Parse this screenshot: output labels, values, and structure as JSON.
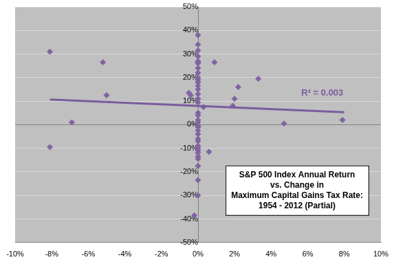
{
  "chart_data": {
    "type": "scatter",
    "title": [
      "S&P 500 Index Annual Return",
      "vs. Change in",
      "Maximum Capital Gains Tax Rate:",
      "1954 - 2012 (Partial)"
    ],
    "annotations": [
      "R² = 0.003"
    ],
    "x": [
      -8.1,
      -8.1,
      -6.9,
      -5.2,
      -5.0,
      -0.5,
      -0.4,
      0.3,
      0.9,
      0.6,
      1.9,
      2.0,
      2.2,
      3.3,
      4.7,
      7.9,
      -0.2,
      0,
      0,
      0,
      0,
      0,
      0,
      0,
      0,
      0,
      0,
      0,
      0,
      0,
      0,
      0,
      0,
      0,
      0,
      0,
      0,
      0,
      0,
      0,
      0,
      0,
      0,
      0,
      0,
      0,
      0,
      0,
      0,
      0,
      0,
      0,
      0
    ],
    "values": [
      31,
      -9.5,
      1,
      26.5,
      12.5,
      13.5,
      12.5,
      7.5,
      26.5,
      -11.5,
      8,
      11,
      16,
      19.5,
      0.5,
      2,
      -38.5,
      38,
      34,
      31.5,
      29,
      27,
      26.5,
      26,
      24,
      22,
      20,
      19,
      18,
      16.5,
      15,
      13,
      11,
      9.5,
      5,
      4,
      2,
      1,
      -0.5,
      -1,
      -2.5,
      -4,
      -6,
      -7,
      -9,
      -10,
      -11,
      -12,
      -13.5,
      -14.5,
      -17.5,
      -23.5,
      -30
    ],
    "color": "#8064a2",
    "marker": "diamond",
    "trendline": {
      "x": [
        -8.1,
        8
      ],
      "values": [
        10.7,
        5.3
      ],
      "color": "#7a5c9e"
    },
    "xlim": [
      -10,
      10
    ],
    "xticks": [
      {
        "value": -10,
        "label": "-10%"
      },
      {
        "value": -8,
        "label": "-8%"
      },
      {
        "value": -6,
        "label": "-6%"
      },
      {
        "value": -4,
        "label": "-4%"
      },
      {
        "value": -2,
        "label": "-2%"
      },
      {
        "value": 0,
        "label": "0%"
      },
      {
        "value": 2,
        "label": "2%"
      },
      {
        "value": 4,
        "label": "4%"
      },
      {
        "value": 6,
        "label": "6%"
      },
      {
        "value": 8,
        "label": "8%"
      },
      {
        "value": 10,
        "label": "10%"
      }
    ],
    "ylim": [
      -50,
      50
    ],
    "yticks": [
      {
        "value": -50,
        "label": "-50%"
      },
      {
        "value": -40,
        "label": "-40%"
      },
      {
        "value": -30,
        "label": "-30%"
      },
      {
        "value": -20,
        "label": "-20%"
      },
      {
        "value": -10,
        "label": "-10%"
      },
      {
        "value": 0,
        "label": "0%"
      },
      {
        "value": 10,
        "label": "10%"
      },
      {
        "value": 20,
        "label": "20%"
      },
      {
        "value": 30,
        "label": "30%"
      },
      {
        "value": 40,
        "label": "40%"
      },
      {
        "value": 50,
        "label": "50%"
      }
    ],
    "grid": true
  }
}
